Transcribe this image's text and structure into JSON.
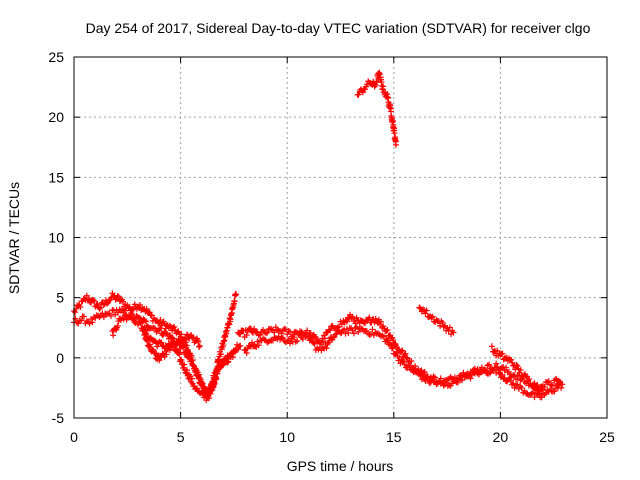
{
  "chart_data": {
    "type": "scatter",
    "title": "Day 254 of 2017, Sidereal Day-to-day VTEC variation (SDTVAR) for receiver clgo",
    "xlabel": "GPS time / hours",
    "ylabel": "SDTVAR / TECUs",
    "xlim": [
      0,
      25
    ],
    "ylim": [
      -5,
      25
    ],
    "xticks": [
      "0",
      "5",
      "10",
      "15",
      "20",
      "25"
    ],
    "yticks": [
      "-5",
      "0",
      "5",
      "10",
      "15",
      "20",
      "25"
    ],
    "grid": true,
    "marker": "+",
    "series": [
      {
        "name": "SDTVAR",
        "color": "#ff0000",
        "tracks": [
          [
            [
              0.0,
              3.8
            ],
            [
              0.3,
              4.4
            ],
            [
              0.6,
              5.0
            ],
            [
              0.9,
              4.6
            ],
            [
              1.2,
              4.2
            ],
            [
              1.5,
              4.6
            ],
            [
              1.8,
              5.1
            ],
            [
              2.1,
              4.9
            ],
            [
              2.4,
              4.4
            ],
            [
              2.7,
              4.0
            ],
            [
              3.0,
              4.4
            ],
            [
              3.3,
              4.1
            ],
            [
              3.6,
              3.5
            ],
            [
              3.9,
              3.0
            ],
            [
              4.2,
              2.8
            ],
            [
              4.5,
              2.5
            ],
            [
              4.8,
              2.2
            ],
            [
              5.0,
              1.8
            ],
            [
              5.2,
              1.2
            ],
            [
              5.4,
              0.4
            ],
            [
              5.6,
              -0.5
            ],
            [
              5.8,
              -1.4
            ],
            [
              6.0,
              -2.2
            ],
            [
              6.2,
              -2.9
            ],
            [
              6.4,
              -2.6
            ],
            [
              6.6,
              -1.3
            ],
            [
              6.8,
              0.0
            ],
            [
              7.0,
              1.2
            ],
            [
              7.2,
              2.5
            ],
            [
              7.4,
              3.8
            ],
            [
              7.6,
              5.3
            ]
          ],
          [
            [
              0.0,
              3.0
            ],
            [
              0.4,
              3.2
            ],
            [
              0.8,
              3.0
            ],
            [
              1.2,
              3.4
            ],
            [
              1.6,
              3.6
            ],
            [
              2.0,
              3.9
            ],
            [
              2.4,
              3.7
            ],
            [
              2.8,
              3.4
            ],
            [
              3.2,
              3.1
            ],
            [
              3.6,
              2.6
            ],
            [
              4.0,
              2.3
            ],
            [
              4.3,
              2.0
            ],
            [
              4.6,
              1.6
            ],
            [
              4.9,
              1.2
            ],
            [
              5.2,
              0.5
            ],
            [
              5.5,
              -0.4
            ],
            [
              5.8,
              -1.4
            ],
            [
              6.0,
              -2.3
            ],
            [
              6.2,
              -3.0
            ],
            [
              6.4,
              -2.8
            ],
            [
              6.6,
              -1.9
            ],
            [
              6.8,
              -0.9
            ],
            [
              7.0,
              -0.3
            ],
            [
              7.2,
              -0.2
            ],
            [
              7.5,
              0.8
            ],
            [
              7.8,
              1.0
            ]
          ],
          [
            [
              1.8,
              2.0
            ],
            [
              2.2,
              3.3
            ],
            [
              2.6,
              3.5
            ],
            [
              3.0,
              3.0
            ],
            [
              3.3,
              2.3
            ],
            [
              3.6,
              1.6
            ],
            [
              3.9,
              1.2
            ],
            [
              4.2,
              1.0
            ],
            [
              4.5,
              1.0
            ],
            [
              4.8,
              0.6
            ],
            [
              5.0,
              -0.2
            ],
            [
              5.3,
              -1.2
            ],
            [
              5.6,
              -2.2
            ],
            [
              5.9,
              -3.0
            ],
            [
              6.2,
              -3.3
            ],
            [
              6.4,
              -3.0
            ],
            [
              6.6,
              -1.8
            ],
            [
              6.8,
              -0.6
            ],
            [
              7.0,
              -0.2
            ],
            [
              7.3,
              0.0
            ],
            [
              7.6,
              0.6
            ]
          ],
          [
            [
              3.2,
              2.5
            ],
            [
              3.4,
              1.5
            ],
            [
              3.6,
              0.8
            ],
            [
              3.8,
              0.2
            ],
            [
              4.0,
              0.0
            ],
            [
              4.3,
              0.3
            ],
            [
              4.5,
              0.9
            ],
            [
              4.8,
              1.3
            ],
            [
              5.0,
              1.4
            ],
            [
              5.2,
              1.6
            ],
            [
              5.4,
              1.8
            ],
            [
              5.7,
              1.5
            ],
            [
              5.9,
              1.0
            ]
          ],
          [
            [
              7.7,
              2.0
            ],
            [
              8.0,
              2.0
            ],
            [
              8.3,
              2.3
            ],
            [
              8.6,
              2.0
            ],
            [
              9.0,
              2.1
            ],
            [
              9.4,
              2.3
            ],
            [
              9.8,
              2.2
            ],
            [
              10.2,
              2.0
            ],
            [
              10.6,
              2.2
            ],
            [
              11.0,
              2.0
            ],
            [
              11.3,
              1.6
            ],
            [
              11.6,
              1.3
            ],
            [
              11.9,
              2.1
            ],
            [
              12.3,
              2.7
            ],
            [
              12.7,
              3.0
            ],
            [
              13.0,
              3.4
            ],
            [
              13.3,
              3.0
            ],
            [
              13.6,
              2.8
            ],
            [
              13.9,
              3.2
            ],
            [
              14.2,
              3.2
            ],
            [
              14.5,
              2.6
            ],
            [
              14.8,
              2.0
            ],
            [
              15.1,
              1.0
            ],
            [
              15.4,
              0.4
            ],
            [
              15.7,
              -0.2
            ],
            [
              16.0,
              -0.9
            ],
            [
              16.3,
              -1.2
            ],
            [
              16.6,
              -1.6
            ],
            [
              17.0,
              -1.8
            ],
            [
              17.4,
              -2.0
            ],
            [
              17.8,
              -1.7
            ],
            [
              18.2,
              -1.4
            ],
            [
              18.6,
              -1.2
            ],
            [
              19.0,
              -1.0
            ],
            [
              19.4,
              -0.8
            ],
            [
              19.8,
              -0.7
            ],
            [
              20.2,
              -1.0
            ],
            [
              20.6,
              -1.4
            ],
            [
              21.0,
              -1.8
            ],
            [
              21.4,
              -2.2
            ],
            [
              21.8,
              -2.5
            ],
            [
              22.2,
              -2.2
            ],
            [
              22.6,
              -2.0
            ],
            [
              22.8,
              -2.0
            ]
          ],
          [
            [
              8.0,
              0.5
            ],
            [
              8.3,
              1.0
            ],
            [
              8.6,
              1.2
            ],
            [
              9.0,
              1.5
            ],
            [
              9.4,
              1.7
            ],
            [
              9.8,
              1.6
            ],
            [
              10.2,
              1.4
            ],
            [
              10.6,
              1.8
            ],
            [
              11.0,
              1.5
            ],
            [
              11.4,
              0.8
            ],
            [
              11.8,
              0.9
            ],
            [
              12.2,
              1.8
            ],
            [
              12.6,
              2.3
            ],
            [
              13.0,
              2.2
            ],
            [
              13.4,
              2.4
            ],
            [
              13.8,
              2.2
            ],
            [
              14.2,
              2.0
            ],
            [
              14.6,
              1.6
            ],
            [
              15.0,
              0.6
            ],
            [
              15.4,
              -0.4
            ],
            [
              15.8,
              -1.0
            ],
            [
              16.2,
              -1.4
            ],
            [
              16.6,
              -1.9
            ],
            [
              17.0,
              -2.1
            ],
            [
              17.4,
              -2.3
            ],
            [
              17.8,
              -2.0
            ],
            [
              18.2,
              -1.6
            ],
            [
              18.6,
              -1.5
            ],
            [
              19.0,
              -1.2
            ],
            [
              19.4,
              -1.1
            ],
            [
              19.8,
              -1.0
            ],
            [
              20.2,
              -1.6
            ],
            [
              20.6,
              -2.2
            ],
            [
              21.0,
              -2.6
            ],
            [
              21.4,
              -3.0
            ],
            [
              21.8,
              -3.3
            ],
            [
              22.2,
              -2.9
            ],
            [
              22.6,
              -2.5
            ],
            [
              22.9,
              -2.2
            ]
          ],
          [
            [
              13.3,
              21.8
            ],
            [
              13.6,
              22.4
            ],
            [
              13.9,
              22.9
            ],
            [
              14.1,
              22.6
            ],
            [
              14.3,
              23.6
            ],
            [
              14.5,
              22.3
            ],
            [
              14.7,
              21.7
            ],
            [
              14.9,
              20.2
            ],
            [
              15.0,
              19.0
            ],
            [
              15.1,
              17.7
            ]
          ],
          [
            [
              16.2,
              4.3
            ],
            [
              16.6,
              3.6
            ],
            [
              17.0,
              3.1
            ],
            [
              17.4,
              2.6
            ],
            [
              17.8,
              2.1
            ]
          ],
          [
            [
              19.6,
              0.7
            ],
            [
              19.9,
              0.3
            ],
            [
              20.2,
              0.0
            ],
            [
              20.5,
              -0.3
            ],
            [
              20.8,
              -0.9
            ],
            [
              21.1,
              -1.5
            ],
            [
              21.4,
              -2.0
            ],
            [
              21.7,
              -2.4
            ],
            [
              22.0,
              -2.6
            ]
          ]
        ]
      }
    ]
  }
}
